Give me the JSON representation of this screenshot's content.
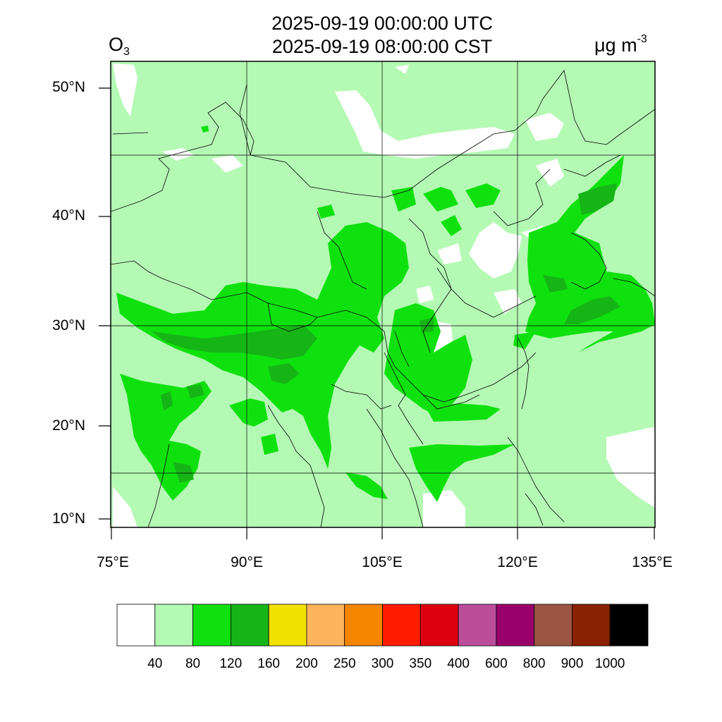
{
  "title": {
    "line1": "2025-09-19 00:00:00 UTC",
    "line2": "2025-09-19 08:00:00 CST",
    "species_main": "O",
    "species_sub": "3",
    "units_main": "μg m",
    "units_sup": "-3"
  },
  "axes": {
    "lat_labels": [
      {
        "id": "50",
        "text": "50°N"
      },
      {
        "id": "40",
        "text": "40°N"
      },
      {
        "id": "30",
        "text": "30°N"
      },
      {
        "id": "20",
        "text": "20°N"
      },
      {
        "id": "10",
        "text": "10°N"
      }
    ],
    "lon_labels": [
      {
        "id": "75",
        "text": "75°E"
      },
      {
        "id": "90",
        "text": "90°E"
      },
      {
        "id": "105",
        "text": "105°E"
      },
      {
        "id": "120",
        "text": "120°E"
      },
      {
        "id": "135",
        "text": "135°E"
      }
    ]
  },
  "colorbar": {
    "colors": [
      "#ffffff",
      "#b4f9b4",
      "#0fe10f",
      "#16b516",
      "#f3e100",
      "#fdb35b",
      "#f68500",
      "#ff1c00",
      "#dd0010",
      "#bb4d9b",
      "#9a006b",
      "#9b5543",
      "#882200",
      "#000000"
    ],
    "labels": [
      "40",
      "80",
      "120",
      "160",
      "200",
      "250",
      "300",
      "350",
      "400",
      "600",
      "800",
      "900",
      "1000"
    ]
  },
  "map_colors": {
    "background": "#b4f9b4",
    "level_80_120": "#0fe10f",
    "level_40_80": "#b4f9b4",
    "level_120_160": "#16b516",
    "below_40": "#ffffff"
  }
}
